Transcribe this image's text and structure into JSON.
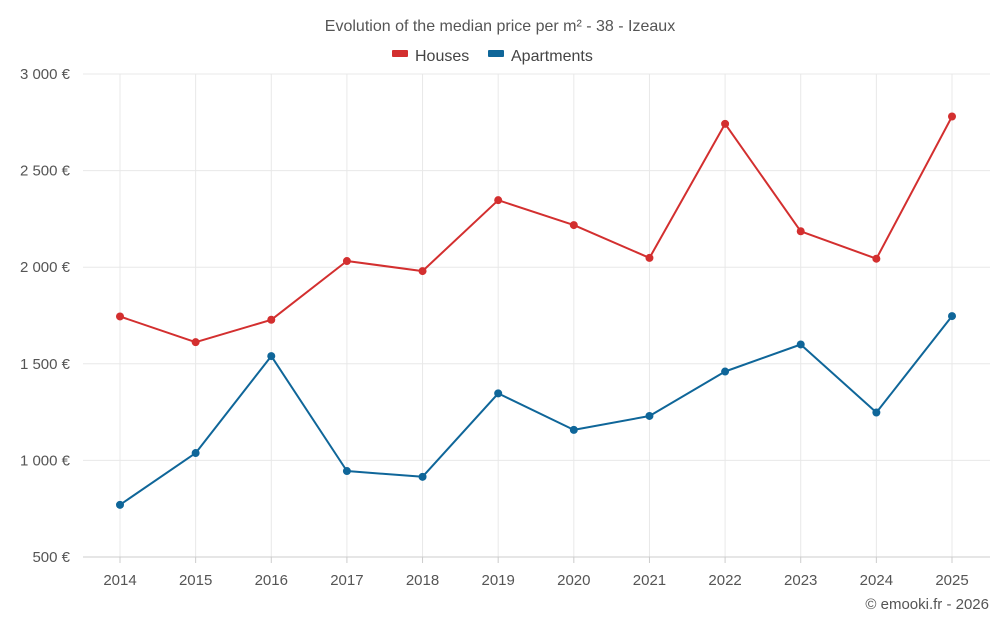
{
  "chart_data": {
    "type": "line",
    "title": "Evolution of the median price per m² - 38 - Izeaux",
    "categories": [
      "2014",
      "2015",
      "2016",
      "2017",
      "2018",
      "2019",
      "2020",
      "2021",
      "2022",
      "2023",
      "2024",
      "2025"
    ],
    "series": [
      {
        "name": "Houses",
        "color": "#d32f2f",
        "values": [
          1745,
          1612,
          1728,
          2032,
          1980,
          2347,
          2218,
          2048,
          2742,
          2186,
          2044,
          2780
        ]
      },
      {
        "name": "Apartments",
        "color": "#0f6699",
        "values": [
          770,
          1038,
          1540,
          945,
          915,
          1347,
          1158,
          1230,
          1460,
          1600,
          1248,
          1747
        ]
      }
    ],
    "ylim": [
      500,
      3000
    ],
    "yticks": [
      500,
      1000,
      1500,
      2000,
      2500,
      3000
    ],
    "ytick_labels": [
      "500 €",
      "1 000 €",
      "1 500 €",
      "2 000 €",
      "2 500 €",
      "3 000 €"
    ],
    "xlabel": "",
    "ylabel": "",
    "grid": true,
    "legend_position": "top-center"
  },
  "credit": "© emooki.fr - 2026"
}
